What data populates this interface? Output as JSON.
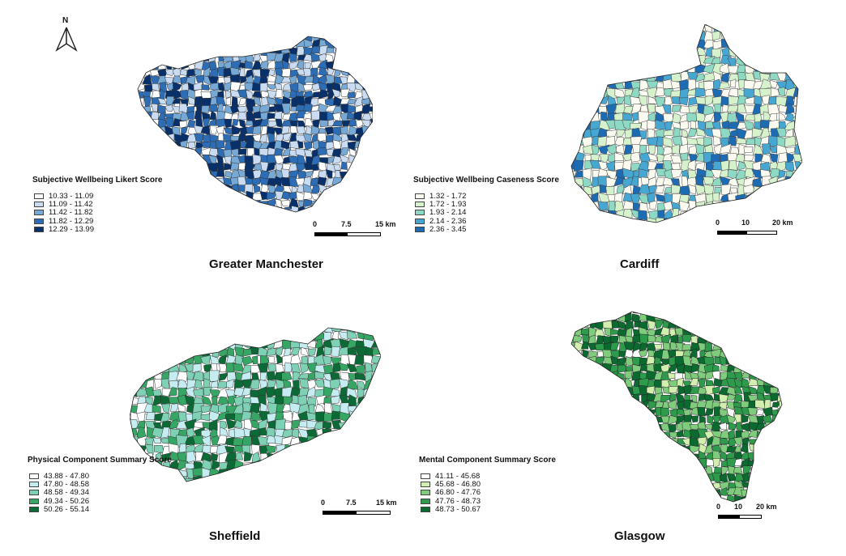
{
  "north_arrow": {
    "label": "N"
  },
  "panels": {
    "manchester": {
      "city": "Greater Manchester",
      "legend_title": "Subjective Wellbeing Likert Score",
      "classes": [
        {
          "label": "10.33 - 11.09",
          "color": "#ffffff"
        },
        {
          "label": "11.09 - 11.42",
          "color": "#c9dcf2"
        },
        {
          "label": "11.42 - 11.82",
          "color": "#76a9d6"
        },
        {
          "label": "11.82 - 12.29",
          "color": "#2c6db5"
        },
        {
          "label": "12.29 - 13.99",
          "color": "#08306b"
        }
      ],
      "scale": {
        "ticks": [
          "0",
          "7.5",
          "15 km"
        ]
      }
    },
    "cardiff": {
      "city": "Cardiff",
      "legend_title": "Subjective Wellbeing Caseness Score",
      "classes": [
        {
          "label": "1.32 - 1.72",
          "color": "#fafaf0"
        },
        {
          "label": "1.72 - 1.93",
          "color": "#d6f2cd"
        },
        {
          "label": "1.93 - 2.14",
          "color": "#8dd9c3"
        },
        {
          "label": "2.14 - 2.36",
          "color": "#45a7d2"
        },
        {
          "label": "2.36 - 3.45",
          "color": "#1c6bb3"
        }
      ],
      "scale": {
        "ticks": [
          "0",
          "10",
          "20 km"
        ]
      }
    },
    "sheffield": {
      "city": "Sheffield",
      "legend_title": "Physical Component Summary Score",
      "classes": [
        {
          "label": "43.88 - 47.80",
          "color": "#ffffff"
        },
        {
          "label": "47.80 - 48.58",
          "color": "#c5ecf0"
        },
        {
          "label": "48.58 - 49.34",
          "color": "#7fd1b5"
        },
        {
          "label": "49.34 - 50.26",
          "color": "#36a665"
        },
        {
          "label": "50.26 - 55.14",
          "color": "#0b6a35"
        }
      ],
      "scale": {
        "ticks": [
          "0",
          "7.5",
          "15 km"
        ]
      }
    },
    "glasgow": {
      "city": "Glasgow",
      "legend_title": "Mental Component Summary Score",
      "classes": [
        {
          "label": "41.11 - 45.68",
          "color": "#ffffff"
        },
        {
          "label": "45.68 - 46.80",
          "color": "#d2efb0"
        },
        {
          "label": "46.80 - 47.76",
          "color": "#7fcc7d"
        },
        {
          "label": "47.76 - 48.73",
          "color": "#2e9b4c"
        },
        {
          "label": "48.73 - 50.67",
          "color": "#0b6a30"
        }
      ],
      "scale": {
        "ticks": [
          "0",
          "10",
          "20 km"
        ]
      }
    }
  }
}
